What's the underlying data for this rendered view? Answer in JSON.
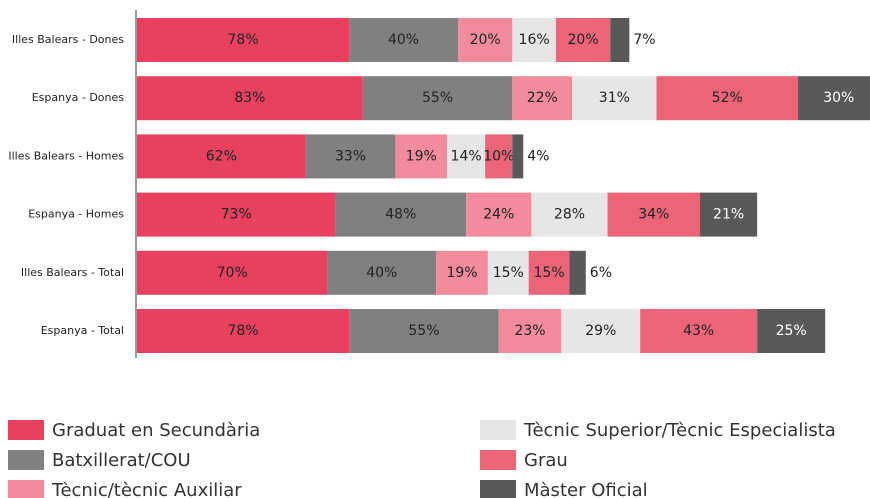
{
  "chart_data": {
    "type": "stacked-bar-horizontal",
    "categories": [
      "Illes Balears - Dones",
      "Espanya - Dones",
      "Illes Balears - Homes",
      "Espanya - Homes",
      "Illes Balears - Total",
      "Espanya - Total"
    ],
    "series": [
      {
        "name": "Graduat en Secundària",
        "color": "#e8415f",
        "values": [
          78,
          83,
          62,
          73,
          70,
          78
        ],
        "value_labels": [
          "78%",
          "83%",
          "62%",
          "73%",
          "70%",
          "78%"
        ]
      },
      {
        "name": "Batxillerat/COU",
        "color": "#808080",
        "values": [
          40,
          55,
          33,
          48,
          40,
          55
        ],
        "value_labels": [
          "40%",
          "55%",
          "33%",
          "48%",
          "40%",
          "55%"
        ]
      },
      {
        "name": "Tècnic/tècnic Auxiliar",
        "color": "#f28b9b",
        "values": [
          20,
          22,
          19,
          24,
          19,
          23
        ],
        "value_labels": [
          "20%",
          "22%",
          "19%",
          "24%",
          "19%",
          "23%"
        ]
      },
      {
        "name": "Tècnic Superior/Tècnic Especialista",
        "color": "#e6e6e6",
        "values": [
          16,
          31,
          14,
          28,
          15,
          29
        ],
        "value_labels": [
          "16%",
          "31%",
          "14%",
          "28%",
          "15%",
          "29%"
        ]
      },
      {
        "name": "Grau",
        "color": "#ec6478",
        "values": [
          20,
          52,
          10,
          34,
          15,
          43
        ],
        "value_labels": [
          "20%",
          "52%",
          "10%",
          "34%",
          "15%",
          "43%"
        ]
      },
      {
        "name": "Màster Oficial",
        "color": "#595959",
        "values": [
          7,
          30,
          4,
          21,
          6,
          25
        ],
        "value_labels": [
          "7%",
          "30%",
          "4%",
          "21%",
          "6%",
          "25%"
        ]
      }
    ]
  }
}
